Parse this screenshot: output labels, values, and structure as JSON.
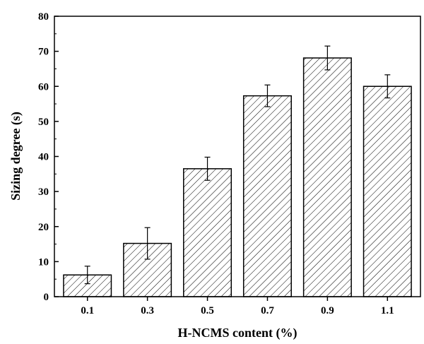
{
  "chart_data": {
    "type": "bar",
    "title": "",
    "xlabel": "H-NCMS content (%)",
    "ylabel": "Sizing degree (s)",
    "categories": [
      "0.1",
      "0.3",
      "0.5",
      "0.7",
      "0.9",
      "1.1"
    ],
    "values": [
      6.2,
      15.2,
      36.5,
      57.3,
      68.1,
      60.0
    ],
    "error": [
      2.5,
      4.5,
      3.3,
      3.1,
      3.4,
      3.3
    ],
    "ylim": [
      0,
      80
    ],
    "yticks": [
      "0",
      "10",
      "20",
      "30",
      "40",
      "50",
      "60",
      "70",
      "80"
    ],
    "grid": false,
    "bar_fill": "diagonal-hatch",
    "bar_color": "#000000"
  }
}
